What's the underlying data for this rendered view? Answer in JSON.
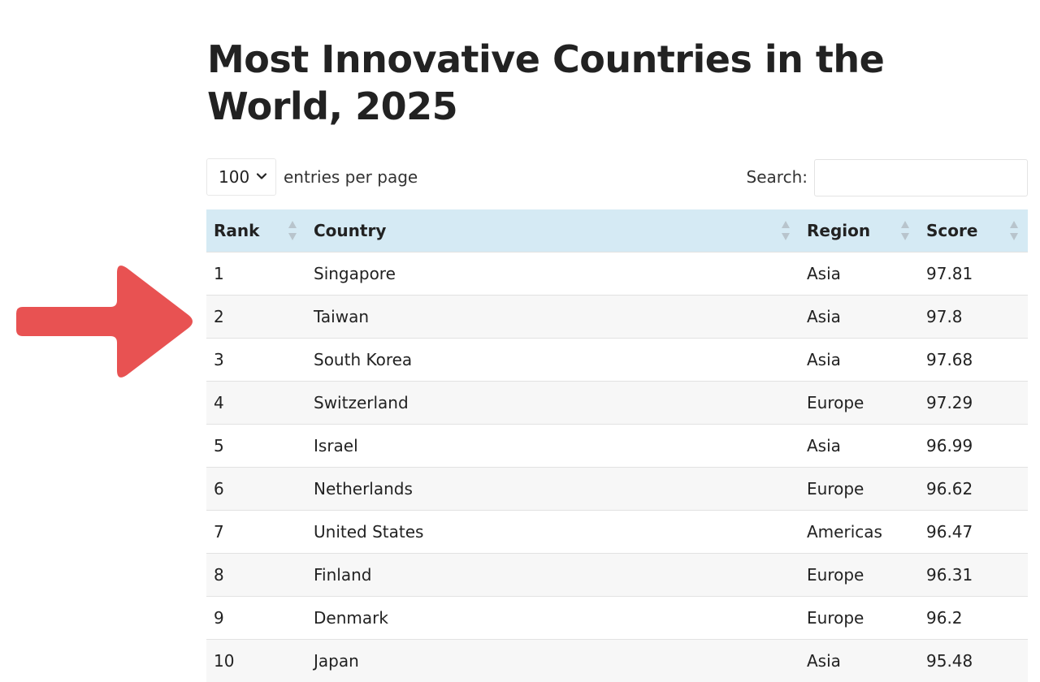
{
  "page": {
    "title": "Most Innovative Countries in the World, 2025"
  },
  "controls": {
    "length_value": "100",
    "length_label": "entries per page",
    "search_label": "Search:",
    "search_value": ""
  },
  "table": {
    "columns": [
      "Rank",
      "Country",
      "Region",
      "Score"
    ],
    "rows": [
      {
        "rank": "1",
        "country": "Singapore",
        "region": "Asia",
        "score": "97.81"
      },
      {
        "rank": "2",
        "country": "Taiwan",
        "region": "Asia",
        "score": "97.8"
      },
      {
        "rank": "3",
        "country": "South Korea",
        "region": "Asia",
        "score": "97.68"
      },
      {
        "rank": "4",
        "country": "Switzerland",
        "region": "Europe",
        "score": "97.29"
      },
      {
        "rank": "5",
        "country": "Israel",
        "region": "Asia",
        "score": "96.99"
      },
      {
        "rank": "6",
        "country": "Netherlands",
        "region": "Europe",
        "score": "96.62"
      },
      {
        "rank": "7",
        "country": "United States",
        "region": "Americas",
        "score": "96.47"
      },
      {
        "rank": "8",
        "country": "Finland",
        "region": "Europe",
        "score": "96.31"
      },
      {
        "rank": "9",
        "country": "Denmark",
        "region": "Europe",
        "score": "96.2"
      },
      {
        "rank": "10",
        "country": "Japan",
        "region": "Asia",
        "score": "95.48"
      }
    ]
  },
  "colors": {
    "header_bg": "#d5eaf4",
    "stripe_bg": "#f7f7f7",
    "arrow": "#e85252"
  },
  "icons": {
    "sort": "sort-both-icon",
    "select_chevron": "chevron-down-icon",
    "pointer": "arrow-right-icon"
  }
}
